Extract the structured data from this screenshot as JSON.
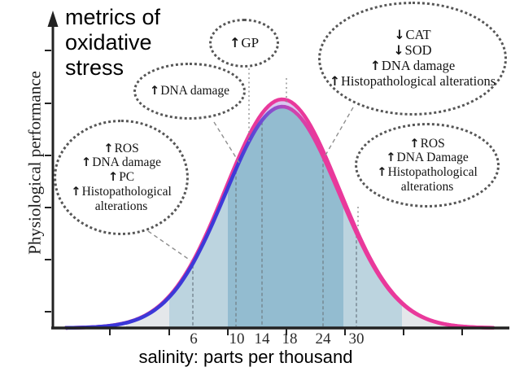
{
  "chart_data": {
    "type": "area",
    "title": "metrics of oxidative stress",
    "xlabel": "salinity: parts per thousand",
    "ylabel": "Physiological performance",
    "x_tick_labels": [
      "6",
      "10",
      "14",
      "18",
      "24",
      "30"
    ],
    "x_axis_note": "schematic axis, non-linear tick spacing",
    "curve": {
      "shape": "bell",
      "peak_at_salinity_ppt": 18,
      "description": "physiological performance is maximal at intermediate salinity and declines toward hypo- and hypersaline extremes",
      "colors": {
        "hyposaline_side": "#3a35d8",
        "peak": "#a34cc4",
        "hypersaline_side": "#e9399b",
        "peak_halo": "#d9c7ef"
      }
    },
    "shaded_zones": [
      {
        "zone": "outer hyposaline",
        "approx_ppt": "3-6",
        "color": "#e4e7ea"
      },
      {
        "zone": "inner hyposaline",
        "approx_ppt": "6-10",
        "color": "#bcd4df"
      },
      {
        "zone": "optimal",
        "approx_ppt": "10-27",
        "color": "#93bcd0"
      },
      {
        "zone": "inner hypersaline",
        "approx_ppt": "27-33",
        "color": "#bcd4df"
      },
      {
        "zone": "outer hypersaline",
        "approx_ppt": "33-38",
        "color": "#e4e7ea"
      }
    ],
    "dashed_guides_at_ppt": [
      6,
      10,
      14,
      24,
      30
    ],
    "legend": "none",
    "grid": "off",
    "annotations": [
      {
        "id": "extreme-hyposaline",
        "zone": "extreme hyposaline (~6 ppt)",
        "items": [
          {
            "direction": "up",
            "label": "ROS"
          },
          {
            "direction": "up",
            "label": "DNA damage"
          },
          {
            "direction": "up",
            "label": "PC"
          },
          {
            "direction": "up",
            "label": "Histopathological alterations"
          }
        ]
      },
      {
        "id": "moderate-hyposaline",
        "zone": "moderate hyposaline (~10-14 ppt)",
        "items": [
          {
            "direction": "up",
            "label": "DNA damage"
          }
        ]
      },
      {
        "id": "optimal-salinity",
        "zone": "optimal (~18 ppt)",
        "items": [
          {
            "direction": "up",
            "label": "GP"
          }
        ]
      },
      {
        "id": "moderate-hypersaline",
        "zone": "moderate hypersaline (~24 ppt)",
        "items": [
          {
            "direction": "down",
            "label": "CAT"
          },
          {
            "direction": "down",
            "label": "SOD"
          },
          {
            "direction": "up",
            "label": "DNA damage"
          },
          {
            "direction": "up",
            "label": "Histopathological alterations"
          }
        ]
      },
      {
        "id": "extreme-hypersaline",
        "zone": "extreme hypersaline (~30 ppt)",
        "items": [
          {
            "direction": "up",
            "label": "ROS"
          },
          {
            "direction": "up",
            "label": "DNA Damage"
          },
          {
            "direction": "up",
            "label": "Histopathological alterations"
          }
        ]
      }
    ]
  }
}
